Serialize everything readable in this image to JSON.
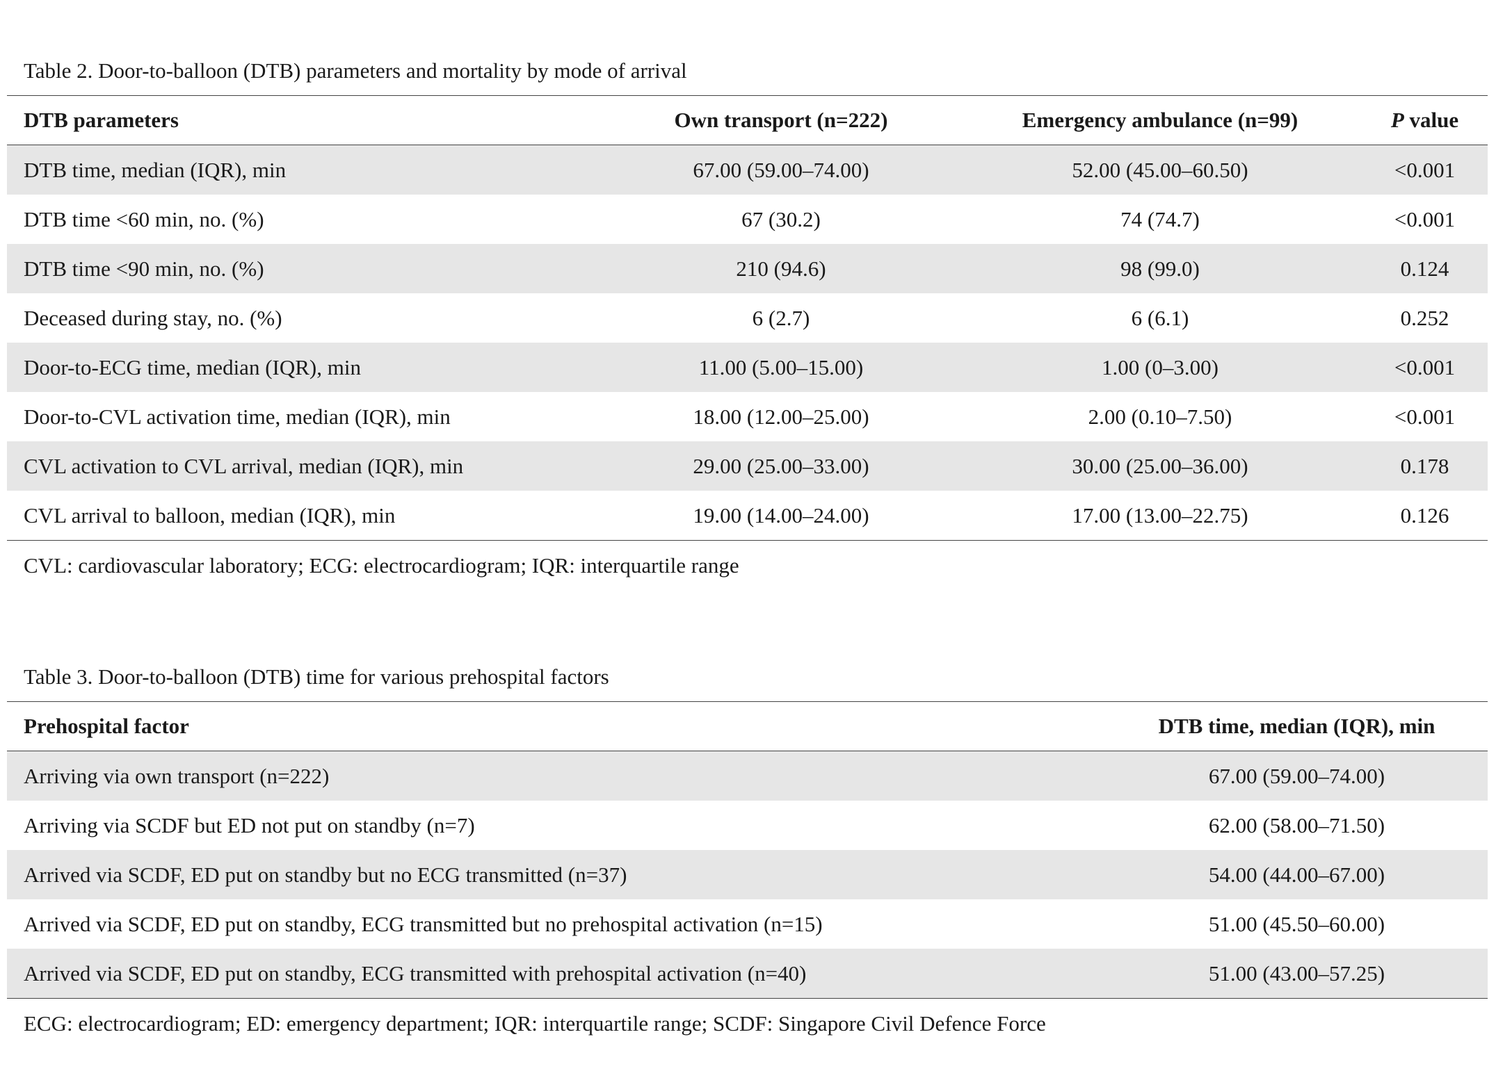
{
  "table2": {
    "caption": "Table 2. Door-to-balloon (DTB) parameters and mortality by mode of arrival",
    "headers": {
      "param": "DTB parameters",
      "own": "Own transport (n=222)",
      "ambulance": "Emergency ambulance (n=99)",
      "p_italic": "P",
      "p_rest": " value"
    },
    "rows": [
      {
        "param": "DTB time, median (IQR), min",
        "own": "67.00 (59.00–74.00)",
        "ambulance": "52.00 (45.00–60.50)",
        "p": "<0.001"
      },
      {
        "param": "DTB time <60 min, no. (%)",
        "own": "67 (30.2)",
        "ambulance": "74 (74.7)",
        "p": "<0.001"
      },
      {
        "param": "DTB time <90 min, no. (%)",
        "own": "210 (94.6)",
        "ambulance": "98 (99.0)",
        "p": "0.124"
      },
      {
        "param": "Deceased during stay, no. (%)",
        "own": "6 (2.7)",
        "ambulance": "6 (6.1)",
        "p": "0.252"
      },
      {
        "param": "Door-to-ECG time, median (IQR), min",
        "own": "11.00 (5.00–15.00)",
        "ambulance": "1.00 (0–3.00)",
        "p": "<0.001"
      },
      {
        "param": "Door-to-CVL activation time, median (IQR), min",
        "own": "18.00 (12.00–25.00)",
        "ambulance": "2.00 (0.10–7.50)",
        "p": "<0.001"
      },
      {
        "param": "CVL activation to CVL arrival, median (IQR), min",
        "own": "29.00 (25.00–33.00)",
        "ambulance": "30.00 (25.00–36.00)",
        "p": "0.178"
      },
      {
        "param": "CVL arrival to balloon, median (IQR), min",
        "own": "19.00 (14.00–24.00)",
        "ambulance": "17.00 (13.00–22.75)",
        "p": "0.126"
      }
    ],
    "footnote": "CVL: cardiovascular laboratory; ECG: electrocardiogram; IQR: interquartile range"
  },
  "table3": {
    "caption": "Table 3. Door-to-balloon (DTB) time for various prehospital factors",
    "headers": {
      "factor": "Prehospital factor",
      "dtb": "DTB time, median (IQR), min"
    },
    "rows": [
      {
        "factor": "Arriving via own transport (n=222)",
        "dtb": "67.00 (59.00–74.00)"
      },
      {
        "factor": "Arriving via SCDF but ED not put on standby (n=7)",
        "dtb": "62.00 (58.00–71.50)"
      },
      {
        "factor": "Arrived via SCDF, ED put on standby but no ECG transmitted (n=37)",
        "dtb": "54.00 (44.00–67.00)"
      },
      {
        "factor": "Arrived via SCDF, ED put on standby, ECG transmitted but no prehospital activation (n=15)",
        "dtb": "51.00 (45.50–60.00)"
      },
      {
        "factor": "Arrived via SCDF, ED put on standby, ECG transmitted with prehospital activation (n=40)",
        "dtb": "51.00 (43.00–57.25)"
      }
    ],
    "footnote": "ECG: electrocardiogram; ED: emergency department; IQR: interquartile range; SCDF: Singapore Civil Defence Force"
  }
}
